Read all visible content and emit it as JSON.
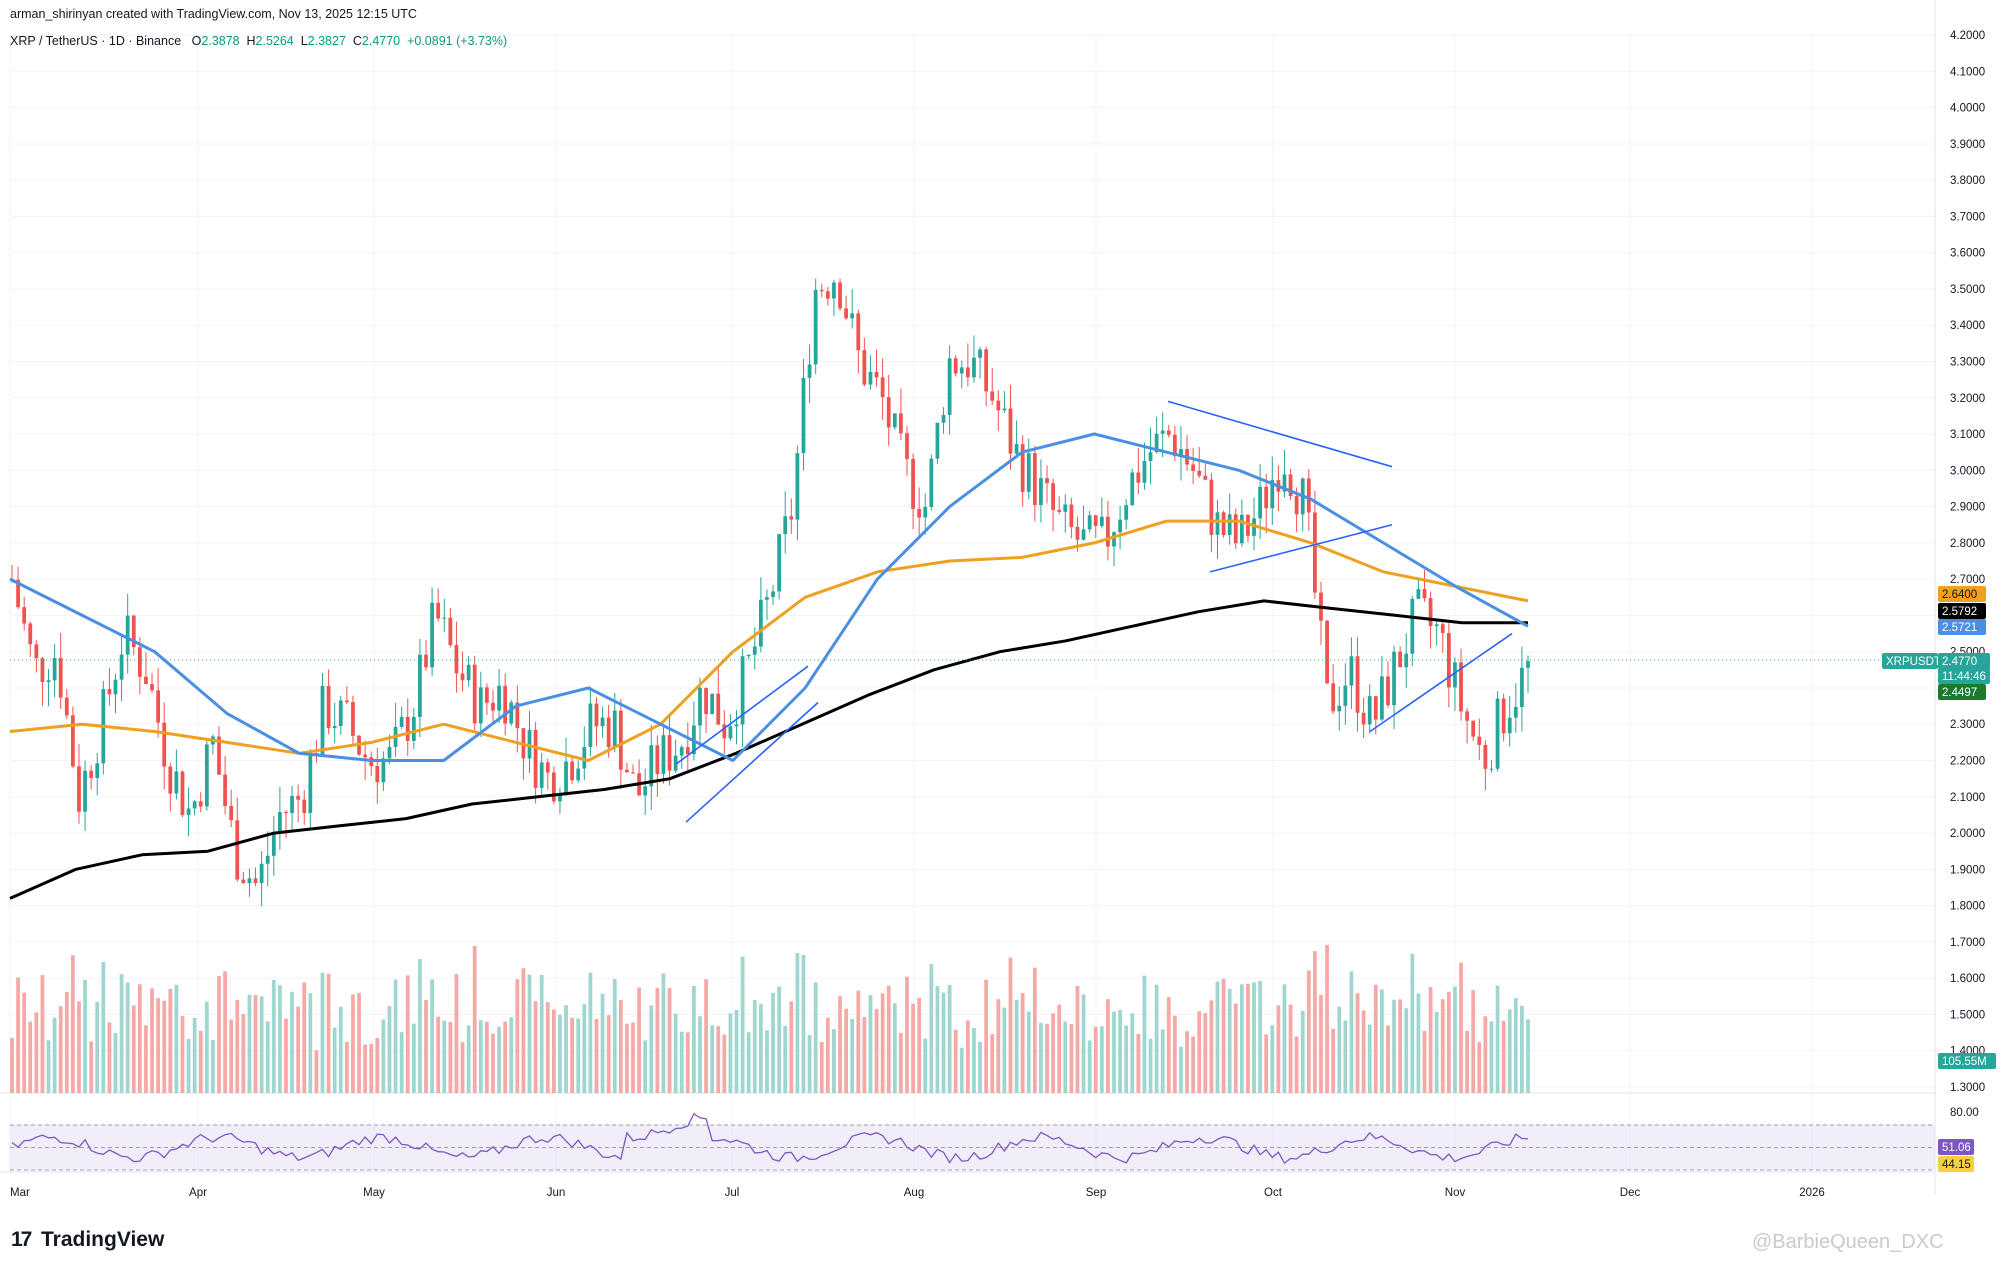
{
  "header": {
    "credit": "arman_shirinyan created with TradingView.com, Nov 13, 2025 12:15 UTC",
    "symbol": "XRP / TetherUS · 1D · Binance",
    "open_label": "O",
    "open": "2.3878",
    "high_label": "H",
    "high": "2.5264",
    "low_label": "L",
    "low": "2.3827",
    "close_label": "C",
    "close": "2.4770",
    "change": "+0.0891 (+3.73%)"
  },
  "colors": {
    "up": "#26a69a",
    "down": "#ef5350",
    "ma_blue": "#4a90e2",
    "ma_orange": "#f0a020",
    "ma_black": "#000000",
    "ma_gray": "#808080",
    "trendline": "#2962ff",
    "rsi_fill": "#e8e1f5"
  },
  "chart_data": {
    "type": "candlestick",
    "price_axis": [
      "4.2000",
      "4.1000",
      "4.0000",
      "3.9000",
      "3.8000",
      "3.7000",
      "3.6000",
      "3.5000",
      "3.4000",
      "3.3000",
      "3.2000",
      "3.1000",
      "3.0000",
      "2.9000",
      "2.8000",
      "2.7000",
      "2.6000",
      "2.5000",
      "2.4000",
      "2.3000",
      "2.2000",
      "2.1000",
      "2.0000",
      "1.9000",
      "1.8000",
      "1.7000",
      "1.6000",
      "1.5000",
      "1.4000",
      "1.3000"
    ],
    "ylim": [
      1.3,
      4.2
    ],
    "time_axis": [
      "Mar",
      "Apr",
      "May",
      "Jun",
      "Jul",
      "Aug",
      "Sep",
      "Oct",
      "Nov",
      "Dec",
      "2026"
    ],
    "price_path": [
      2.7,
      2.45,
      2.5,
      2.1,
      2.3,
      2.55,
      2.45,
      2.2,
      2.05,
      2.25,
      1.95,
      1.85,
      2.05,
      2.1,
      2.35,
      2.3,
      2.2,
      2.2,
      2.35,
      2.6,
      2.45,
      2.35,
      2.4,
      2.25,
      2.15,
      2.2,
      2.3,
      2.3,
      2.1,
      2.2,
      2.25,
      2.4,
      2.3,
      2.45,
      2.65,
      2.9,
      3.5,
      3.55,
      3.3,
      3.2,
      3.0,
      2.9,
      3.3,
      3.3,
      3.2,
      3.05,
      2.95,
      2.85,
      2.8,
      2.8,
      2.95,
      3.05,
      3.1,
      3.0,
      2.85,
      2.8,
      2.9,
      3.05,
      2.9,
      2.35,
      2.45,
      2.3,
      2.45,
      2.6,
      2.55,
      2.35,
      2.2,
      2.35,
      2.45
    ],
    "moving_averages": {
      "ma_200": [
        1.82,
        1.9,
        1.94,
        1.95,
        2.0,
        2.02,
        2.04,
        2.08,
        2.1,
        2.12,
        2.15,
        2.22,
        2.3,
        2.38,
        2.45,
        2.5,
        2.53,
        2.57,
        2.61,
        2.64,
        2.62,
        2.6,
        2.58,
        2.58
      ],
      "ma_100": [
        2.28,
        2.3,
        2.28,
        2.25,
        2.22,
        2.25,
        2.3,
        2.25,
        2.2,
        2.3,
        2.5,
        2.65,
        2.72,
        2.75,
        2.76,
        2.8,
        2.86,
        2.86,
        2.8,
        2.72,
        2.68,
        2.64
      ],
      "ma_50": [
        2.7,
        2.6,
        2.5,
        2.33,
        2.22,
        2.2,
        2.2,
        2.35,
        2.4,
        2.3,
        2.2,
        2.4,
        2.7,
        2.9,
        3.05,
        3.1,
        3.05,
        3.0,
        2.92,
        2.8,
        2.68,
        2.57
      ]
    },
    "last_price_tags": [
      {
        "value": "2.6400",
        "color": "#f0a020",
        "text_color": "#131722"
      },
      {
        "value": "2.5792",
        "color": "#000000",
        "text_color": "#ffffff"
      },
      {
        "value": "2.5721",
        "color": "#4a90e2",
        "text_color": "#ffffff"
      },
      {
        "value": "XRPUSDT",
        "color": "#26a69a",
        "text_color": "#ffffff"
      },
      {
        "value": "2.4770",
        "color": "#26a69a",
        "text_color": "#ffffff"
      },
      {
        "value": "11:44:46",
        "color": "#26a69a",
        "text_color": "#ffffff"
      },
      {
        "value": "2.4497",
        "color": "#1b7a2c",
        "text_color": "#ffffff"
      }
    ],
    "volume_tag": "105.55M",
    "rsi": {
      "axis_label": "80.00",
      "value": "51.06",
      "ma_value": "44.15",
      "levels": [
        70,
        50,
        30
      ]
    }
  },
  "footer": {
    "brand": "TradingView",
    "watermark": "@BarbieQueen_DXC"
  }
}
